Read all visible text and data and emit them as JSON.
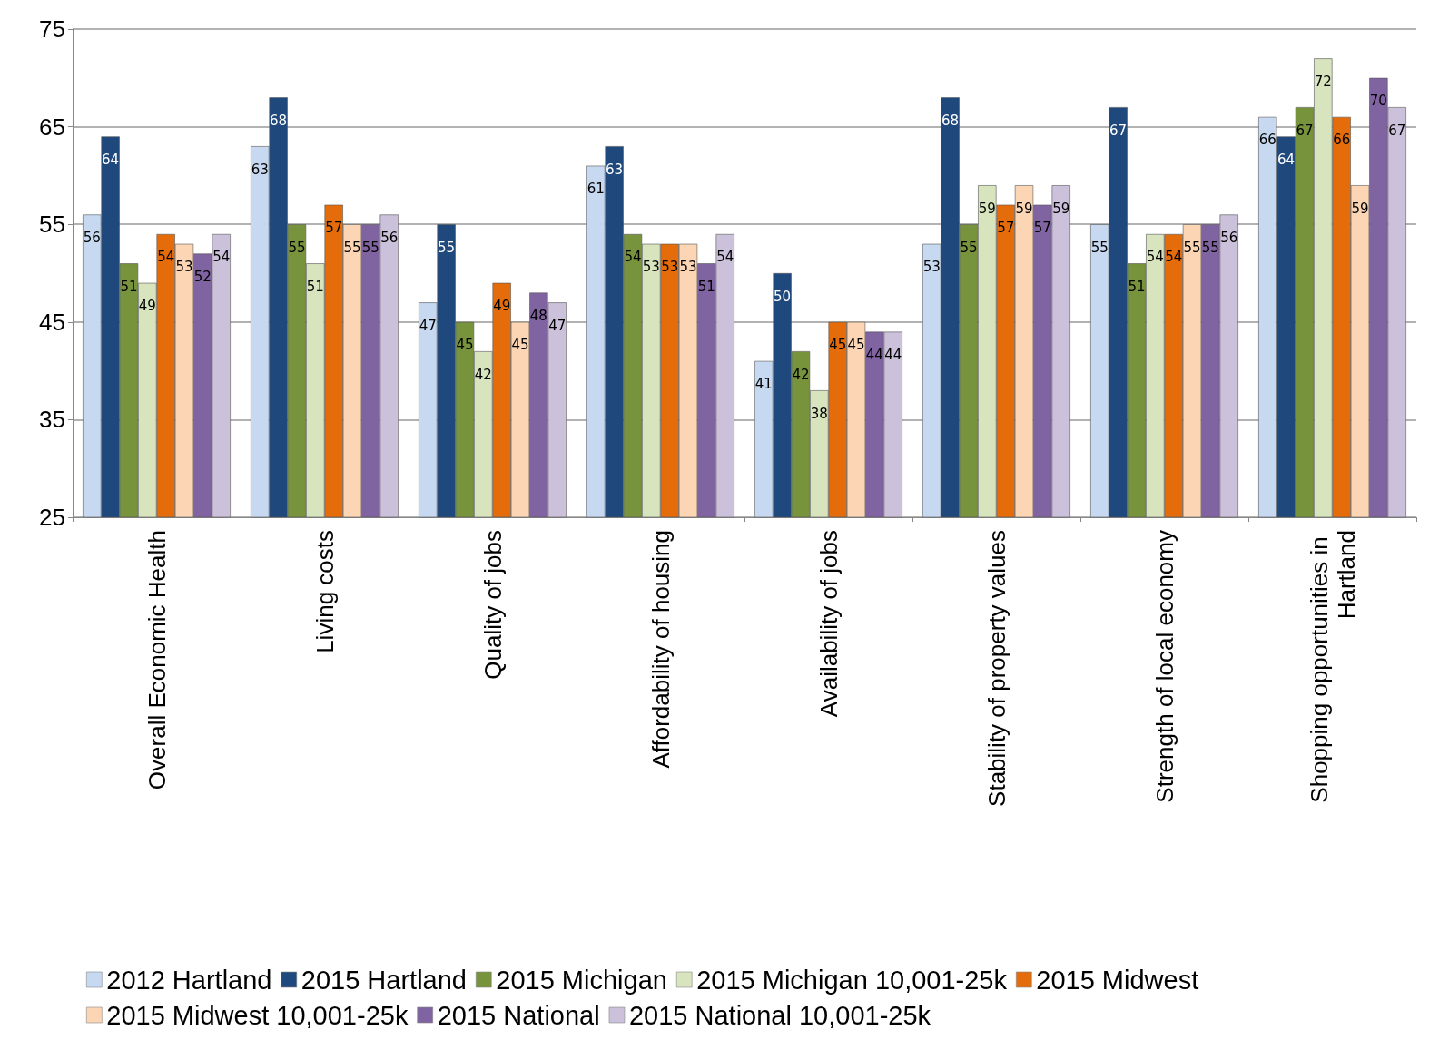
{
  "chart_data": {
    "type": "bar",
    "categories": [
      "Overall Economic Health",
      "Living costs",
      "Quality of jobs",
      "Affordability of housing",
      "Availability of jobs",
      "Stability of property values",
      "Strength of local economy",
      "Shopping opportunities in Hartland"
    ],
    "series": [
      {
        "name": "2012 Hartland",
        "color": "#c6d9f1",
        "values": [
          56,
          63,
          47,
          61,
          41,
          53,
          55,
          66
        ]
      },
      {
        "name": "2015 Hartland",
        "color": "#1f497d",
        "values": [
          64,
          68,
          55,
          63,
          50,
          68,
          67,
          64
        ]
      },
      {
        "name": "2015 Michigan",
        "color": "#77933c",
        "values": [
          51,
          55,
          45,
          54,
          42,
          55,
          51,
          67
        ]
      },
      {
        "name": "2015 Michigan 10,001-25k",
        "color": "#d7e4bd",
        "values": [
          49,
          51,
          42,
          53,
          38,
          59,
          54,
          72
        ]
      },
      {
        "name": "2015 Midwest",
        "color": "#e46c0a",
        "values": [
          54,
          57,
          49,
          53,
          45,
          57,
          54,
          66
        ]
      },
      {
        "name": "2015 Midwest 10,001-25k",
        "color": "#fcd5b5",
        "values": [
          53,
          55,
          45,
          53,
          45,
          59,
          55,
          59
        ]
      },
      {
        "name": "2015 National",
        "color": "#8064a2",
        "values": [
          52,
          55,
          48,
          51,
          44,
          57,
          55,
          70
        ]
      },
      {
        "name": "2015 National 10,001-25k",
        "color": "#ccc1da",
        "values": [
          54,
          56,
          47,
          54,
          44,
          59,
          56,
          67
        ]
      }
    ],
    "ylim": [
      25,
      75
    ],
    "yticks": [
      25,
      35,
      45,
      55,
      65,
      75
    ],
    "grid": "y",
    "legend": "bottom",
    "data_labels": true
  }
}
